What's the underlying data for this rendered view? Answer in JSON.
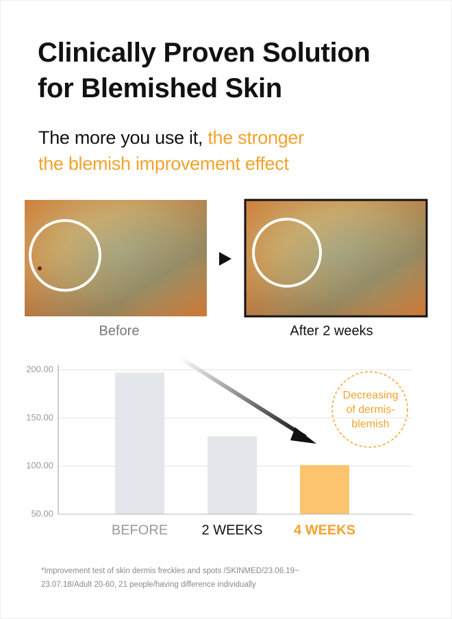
{
  "header": {
    "title_lines": [
      "Clinically Proven Solution",
      "for Blemished Skin"
    ],
    "subtitle_plain": "The more you use it,",
    "subtitle_accent": [
      "the stronger",
      "the blemish improvement effect"
    ]
  },
  "photos": {
    "before_label": "Before",
    "after_label": "After 2 weeks"
  },
  "chart_data": {
    "type": "bar",
    "categories": [
      "BEFORE",
      "2 WEEKS",
      "4 WEEKS"
    ],
    "values": [
      197,
      131,
      101
    ],
    "colors": [
      "#e3e6ea",
      "#e3e6ea",
      "#fcc46c"
    ],
    "label_colors": [
      "#999999",
      "#111111",
      "#f3a22c"
    ],
    "ylim": [
      50,
      205
    ],
    "yticks": [
      {
        "value": 50,
        "label": "50.00"
      },
      {
        "value": 100,
        "label": "100.00"
      },
      {
        "value": 150,
        "label": "150.00"
      },
      {
        "value": 200,
        "label": "200.00"
      }
    ],
    "grid": true,
    "annotation": [
      "Decreasing",
      "of dermis-",
      "blemish"
    ]
  },
  "footnote": [
    "*Improvement test of skin dermis freckles and spots /SKINMED/23.06.19~",
    "23.07.18/Adult 20-60, 21 people/having difference individually"
  ]
}
